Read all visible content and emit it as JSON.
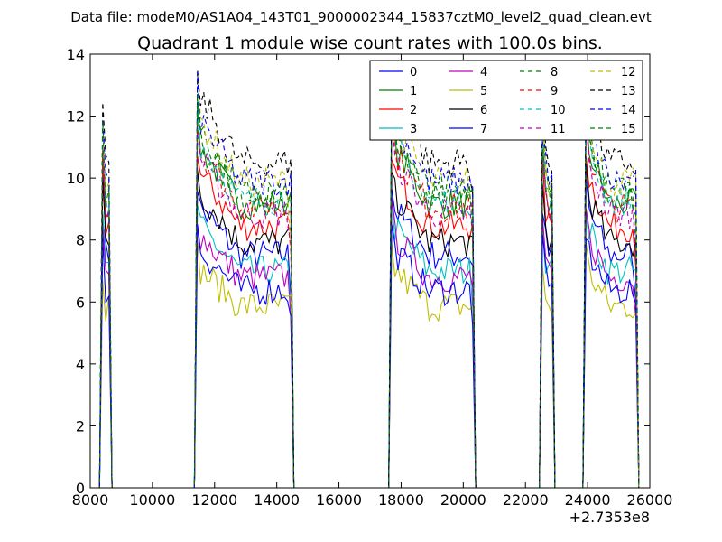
{
  "header": {
    "file_line": "Data file: modeM0/AS1A04_143T01_9000002344_15837cztM0_level2_quad_clean.evt",
    "title": "Quadrant 1 module wise count rates with 100.0s bins.",
    "x_offset_label": "+2.7353e8"
  },
  "chart_data": {
    "type": "line",
    "title": "Quadrant 1 module wise count rates with 100.0s bins.",
    "xlabel": "",
    "ylabel": "",
    "x_offset": 273530000,
    "xlim": [
      8000,
      26000
    ],
    "ylim": [
      0,
      14
    ],
    "xticks": [
      "8000",
      "10000",
      "12000",
      "14000",
      "16000",
      "18000",
      "20000",
      "22000",
      "24000",
      "26000"
    ],
    "yticks": [
      "0",
      "2",
      "4",
      "6",
      "8",
      "10",
      "12",
      "14"
    ],
    "grid": false,
    "legend_position": "top-right",
    "legend_columns": 4,
    "bin_size_s": 100,
    "active_segments": [
      {
        "start": 8400,
        "end": 8600
      },
      {
        "start": 11450,
        "end": 14450
      },
      {
        "start": 17700,
        "end": 20300
      },
      {
        "start": 22550,
        "end": 22850
      },
      {
        "start": 23950,
        "end": 25550
      }
    ],
    "series": [
      {
        "name": "0",
        "color": "#0000ff",
        "dash": "solid",
        "level": 7.3
      },
      {
        "name": "1",
        "color": "#008000",
        "dash": "solid",
        "level": 8.9
      },
      {
        "name": "2",
        "color": "#ff0000",
        "dash": "solid",
        "level": 8.2
      },
      {
        "name": "3",
        "color": "#00bfbf",
        "dash": "solid",
        "level": 6.8
      },
      {
        "name": "4",
        "color": "#bf00bf",
        "dash": "solid",
        "level": 6.6
      },
      {
        "name": "5",
        "color": "#bfbf00",
        "dash": "solid",
        "level": 5.7
      },
      {
        "name": "6",
        "color": "#000000",
        "dash": "solid",
        "level": 7.7
      },
      {
        "name": "7",
        "color": "#0000ff",
        "dash": "solid",
        "level": 6.2
      },
      {
        "name": "8",
        "color": "#008000",
        "dash": "dashed",
        "level": 9.3
      },
      {
        "name": "9",
        "color": "#ff0000",
        "dash": "dashed",
        "level": 8.8
      },
      {
        "name": "10",
        "color": "#00bfbf",
        "dash": "dashed",
        "level": 9.0
      },
      {
        "name": "11",
        "color": "#bf00bf",
        "dash": "dashed",
        "level": 8.6
      },
      {
        "name": "12",
        "color": "#bfbf00",
        "dash": "dashed",
        "level": 9.6
      },
      {
        "name": "13",
        "color": "#000000",
        "dash": "dashed",
        "level": 10.2
      },
      {
        "name": "14",
        "color": "#0000ff",
        "dash": "dashed",
        "level": 9.6
      },
      {
        "name": "15",
        "color": "#008000",
        "dash": "dashed",
        "level": 9.1
      }
    ]
  }
}
